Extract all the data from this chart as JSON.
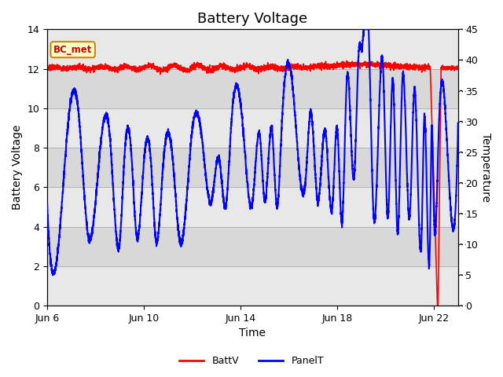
{
  "title": "Battery Voltage",
  "xlabel": "Time",
  "ylabel_left": "Battery Voltage",
  "ylabel_right": "Temperature",
  "ylim_left": [
    0,
    14
  ],
  "ylim_right": [
    0,
    45
  ],
  "x_tick_labels": [
    "Jun 6",
    "Jun 10",
    "Jun 14",
    "Jun 18",
    "Jun 22"
  ],
  "x_tick_positions": [
    0,
    4,
    8,
    12,
    16
  ],
  "annotation_label": "BC_met",
  "bg_color": "#e8e8e8",
  "band_color": "#d4d4d4",
  "white_band_color": "#ececec",
  "battv_color": "#ff0000",
  "panelt_color": "#0000ff",
  "legend_battv": "BattV",
  "legend_panelt": "PanelT",
  "battv_linewidth": 1.2,
  "panelt_linewidth": 1.5,
  "title_fontsize": 13,
  "axis_label_fontsize": 10,
  "total_days": 17.0,
  "drop_day": 15.85
}
